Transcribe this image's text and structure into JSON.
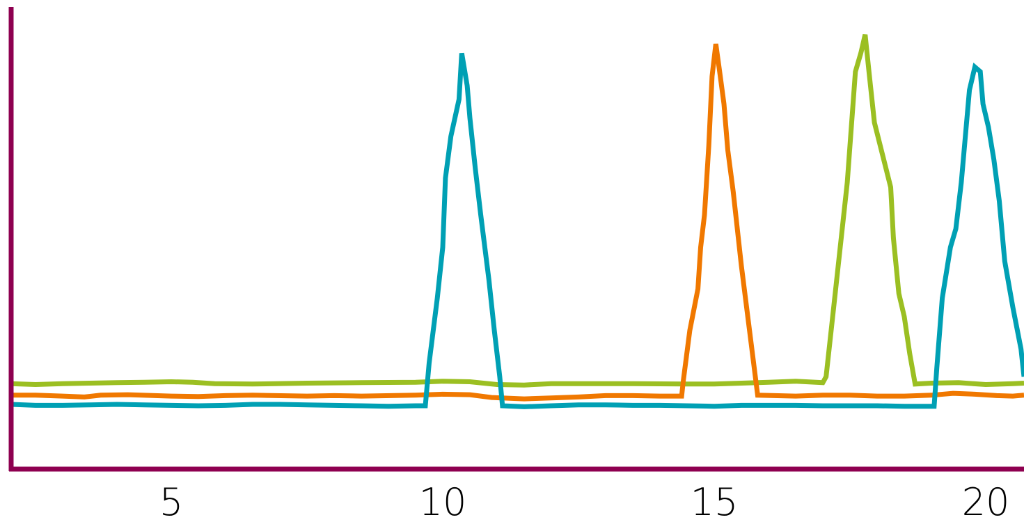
{
  "chart_data": {
    "type": "line",
    "title": "",
    "xlabel": "",
    "ylabel": "",
    "xlim": [
      2,
      21
    ],
    "ylim": [
      0,
      100
    ],
    "grid": false,
    "legend": "none",
    "x_ticks": [
      {
        "value": 5,
        "label": "5"
      },
      {
        "value": 10,
        "label": "10"
      },
      {
        "value": 15,
        "label": "15"
      },
      {
        "value": 20,
        "label": "20"
      }
    ],
    "series": [
      {
        "color": "#9bbf22",
        "points": [
          [
            2.05,
            18.5
          ],
          [
            2.5,
            18.3
          ],
          [
            3.0,
            18.5
          ],
          [
            3.5,
            18.6
          ],
          [
            4.0,
            18.7
          ],
          [
            4.5,
            18.8
          ],
          [
            5.0,
            18.9
          ],
          [
            5.4,
            18.8
          ],
          [
            5.8,
            18.5
          ],
          [
            6.5,
            18.4
          ],
          [
            7.5,
            18.6
          ],
          [
            8.5,
            18.7
          ],
          [
            9.5,
            18.8
          ],
          [
            10.0,
            19.0
          ],
          [
            10.5,
            18.9
          ],
          [
            11.0,
            18.3
          ],
          [
            11.5,
            18.2
          ],
          [
            12.0,
            18.5
          ],
          [
            12.5,
            18.5
          ],
          [
            13.5,
            18.5
          ],
          [
            14.5,
            18.4
          ],
          [
            15.0,
            18.4
          ],
          [
            15.5,
            18.6
          ],
          [
            16.0,
            18.8
          ],
          [
            16.5,
            19.0
          ],
          [
            17.0,
            18.7
          ],
          [
            17.06,
            20.0
          ],
          [
            17.2,
            35.0
          ],
          [
            17.45,
            62.0
          ],
          [
            17.6,
            86.0
          ],
          [
            17.7,
            90.0
          ],
          [
            17.78,
            94.0
          ],
          [
            17.85,
            86.0
          ],
          [
            17.95,
            75.0
          ],
          [
            18.1,
            68.0
          ],
          [
            18.25,
            61.0
          ],
          [
            18.3,
            50.0
          ],
          [
            18.4,
            38.0
          ],
          [
            18.5,
            33.0
          ],
          [
            18.6,
            25.0
          ],
          [
            18.7,
            18.4
          ],
          [
            19.0,
            18.6
          ],
          [
            19.5,
            18.7
          ],
          [
            20.0,
            18.3
          ],
          [
            20.5,
            18.5
          ],
          [
            21.0,
            18.6
          ]
        ]
      },
      {
        "color": "#f07800",
        "points": [
          [
            2.05,
            16.0
          ],
          [
            2.5,
            16.0
          ],
          [
            3.0,
            15.8
          ],
          [
            3.4,
            15.6
          ],
          [
            3.7,
            16.0
          ],
          [
            4.2,
            16.1
          ],
          [
            5.0,
            15.8
          ],
          [
            5.5,
            15.7
          ],
          [
            6.0,
            15.9
          ],
          [
            6.5,
            16.0
          ],
          [
            7.5,
            15.8
          ],
          [
            8.0,
            15.9
          ],
          [
            8.5,
            15.8
          ],
          [
            9.5,
            16.0
          ],
          [
            10.0,
            16.2
          ],
          [
            10.5,
            16.1
          ],
          [
            10.9,
            15.5
          ],
          [
            11.5,
            15.2
          ],
          [
            12.0,
            15.4
          ],
          [
            12.5,
            15.6
          ],
          [
            13.0,
            15.9
          ],
          [
            13.5,
            15.9
          ],
          [
            14.0,
            15.8
          ],
          [
            14.4,
            15.8
          ],
          [
            14.43,
            19.0
          ],
          [
            14.55,
            30.0
          ],
          [
            14.7,
            39.0
          ],
          [
            14.75,
            48.0
          ],
          [
            14.82,
            55.0
          ],
          [
            14.9,
            70.0
          ],
          [
            14.96,
            85.0
          ],
          [
            15.03,
            92.0
          ],
          [
            15.1,
            86.0
          ],
          [
            15.18,
            79.0
          ],
          [
            15.25,
            69.0
          ],
          [
            15.35,
            60.0
          ],
          [
            15.5,
            44.0
          ],
          [
            15.65,
            30.0
          ],
          [
            15.8,
            16.0
          ],
          [
            16.5,
            15.8
          ],
          [
            17.0,
            16.0
          ],
          [
            17.5,
            16.0
          ],
          [
            18.0,
            15.8
          ],
          [
            18.5,
            15.8
          ],
          [
            19.0,
            16.0
          ],
          [
            19.4,
            16.4
          ],
          [
            19.8,
            16.2
          ],
          [
            20.2,
            15.9
          ],
          [
            20.5,
            15.8
          ],
          [
            21.0,
            16.0
          ]
        ]
      },
      {
        "color": "#00a0b4",
        "points": [
          [
            2.05,
            14.0
          ],
          [
            2.5,
            13.8
          ],
          [
            3.0,
            13.8
          ],
          [
            3.5,
            13.9
          ],
          [
            4.0,
            14.0
          ],
          [
            4.5,
            13.9
          ],
          [
            5.0,
            13.8
          ],
          [
            5.5,
            13.7
          ],
          [
            6.0,
            13.8
          ],
          [
            6.5,
            14.0
          ],
          [
            7.0,
            14.0
          ],
          [
            7.5,
            13.9
          ],
          [
            8.0,
            13.8
          ],
          [
            8.5,
            13.7
          ],
          [
            9.0,
            13.6
          ],
          [
            9.5,
            13.7
          ],
          [
            9.68,
            13.7
          ],
          [
            9.75,
            23.0
          ],
          [
            9.9,
            37.0
          ],
          [
            10.0,
            48.0
          ],
          [
            10.05,
            63.0
          ],
          [
            10.15,
            72.0
          ],
          [
            10.3,
            80.0
          ],
          [
            10.35,
            90.0
          ],
          [
            10.45,
            83.0
          ],
          [
            10.5,
            76.0
          ],
          [
            10.6,
            65.0
          ],
          [
            10.7,
            55.0
          ],
          [
            10.85,
            41.0
          ],
          [
            10.95,
            30.0
          ],
          [
            11.05,
            20.0
          ],
          [
            11.1,
            13.7
          ],
          [
            11.5,
            13.5
          ],
          [
            12.0,
            13.7
          ],
          [
            12.5,
            13.9
          ],
          [
            13.0,
            13.9
          ],
          [
            13.5,
            13.8
          ],
          [
            14.0,
            13.8
          ],
          [
            14.5,
            13.7
          ],
          [
            15.0,
            13.6
          ],
          [
            15.5,
            13.8
          ],
          [
            16.0,
            13.8
          ],
          [
            16.5,
            13.8
          ],
          [
            17.0,
            13.7
          ],
          [
            17.5,
            13.7
          ],
          [
            18.0,
            13.7
          ],
          [
            18.5,
            13.6
          ],
          [
            19.0,
            13.6
          ],
          [
            19.05,
            13.6
          ],
          [
            19.1,
            22.0
          ],
          [
            19.2,
            37.0
          ],
          [
            19.35,
            48.0
          ],
          [
            19.45,
            52.0
          ],
          [
            19.55,
            62.0
          ],
          [
            19.7,
            82.0
          ],
          [
            19.8,
            87.0
          ],
          [
            19.9,
            86.0
          ],
          [
            19.95,
            79.0
          ],
          [
            20.05,
            74.0
          ],
          [
            20.15,
            67.0
          ],
          [
            20.25,
            58.0
          ],
          [
            20.35,
            45.0
          ],
          [
            20.5,
            35.0
          ],
          [
            20.65,
            26.0
          ],
          [
            21.0,
            20.0
          ]
        ]
      }
    ]
  }
}
